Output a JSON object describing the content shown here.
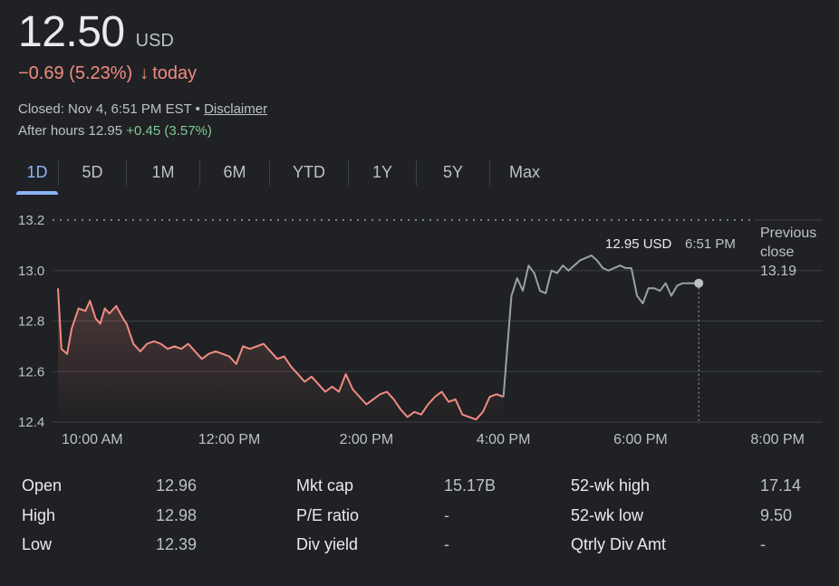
{
  "quote": {
    "price": "12.50",
    "currency": "USD",
    "change": "−0.69 (5.23%)",
    "change_arrow": "↓",
    "change_period": "today",
    "closed_text": "Closed: Nov 4, 6:51 PM EST",
    "separator": "•",
    "disclaimer": "Disclaimer",
    "after_hours_label": "After hours 12.95",
    "after_hours_change": "+0.45 (3.57%)"
  },
  "tabs": [
    "1D",
    "5D",
    "1M",
    "6M",
    "YTD",
    "1Y",
    "5Y",
    "Max"
  ],
  "active_tab": "1D",
  "colors": {
    "down": "#f28b82",
    "up": "#81c995",
    "after_hours_line": "#9aa0a6",
    "accent": "#8ab4f8",
    "grid": "#3c4043"
  },
  "chart_data": {
    "type": "line",
    "ylim": [
      12.4,
      13.2
    ],
    "yticks": [
      "13.2",
      "13.0",
      "12.8",
      "12.6",
      "12.4"
    ],
    "ytick_values": [
      13.2,
      13.0,
      12.8,
      12.6,
      12.4
    ],
    "xlim": [
      "09:30",
      "20:30"
    ],
    "xticks": [
      "10:00 AM",
      "12:00 PM",
      "2:00 PM",
      "4:00 PM",
      "6:00 PM",
      "8:00 PM"
    ],
    "xtick_times": [
      "10:00",
      "12:00",
      "14:00",
      "16:00",
      "18:00",
      "20:00"
    ],
    "previous_close": {
      "label": "Previous close",
      "value": "13.19"
    },
    "tooltip": {
      "price": "12.95 USD",
      "time": "6:51 PM"
    },
    "series": [
      {
        "session": "regular",
        "x": [
          "09:30",
          "09:33",
          "09:38",
          "09:42",
          "09:48",
          "09:54",
          "09:58",
          "10:03",
          "10:07",
          "10:11",
          "10:15",
          "10:21",
          "10:27",
          "10:30",
          "10:36",
          "10:42",
          "10:48",
          "10:54",
          "11:00",
          "11:06",
          "11:12",
          "11:18",
          "11:24",
          "11:30",
          "11:36",
          "11:42",
          "11:48",
          "11:54",
          "12:00",
          "12:06",
          "12:12",
          "12:18",
          "12:24",
          "12:30",
          "12:36",
          "12:42",
          "12:48",
          "12:54",
          "13:00",
          "13:06",
          "13:12",
          "13:18",
          "13:24",
          "13:30",
          "13:36",
          "13:42",
          "13:48",
          "13:54",
          "14:00",
          "14:06",
          "14:12",
          "14:18",
          "14:24",
          "14:30",
          "14:36",
          "14:42",
          "14:48",
          "14:54",
          "15:00",
          "15:06",
          "15:12",
          "15:18",
          "15:24",
          "15:30",
          "15:36",
          "15:42",
          "15:48",
          "15:54",
          "16:00"
        ],
        "y": [
          12.93,
          12.69,
          12.67,
          12.77,
          12.85,
          12.84,
          12.88,
          12.81,
          12.79,
          12.85,
          12.83,
          12.86,
          12.81,
          12.79,
          12.71,
          12.68,
          12.71,
          12.72,
          12.71,
          12.69,
          12.7,
          12.69,
          12.71,
          12.68,
          12.65,
          12.67,
          12.68,
          12.67,
          12.66,
          12.63,
          12.7,
          12.69,
          12.7,
          12.71,
          12.68,
          12.65,
          12.66,
          12.62,
          12.59,
          12.56,
          12.58,
          12.55,
          12.52,
          12.54,
          12.52,
          12.59,
          12.53,
          12.5,
          12.47,
          12.49,
          12.51,
          12.52,
          12.49,
          12.45,
          12.42,
          12.44,
          12.43,
          12.47,
          12.5,
          12.52,
          12.48,
          12.49,
          12.43,
          12.42,
          12.41,
          12.44,
          12.5,
          12.51,
          12.5
        ]
      },
      {
        "session": "after_hours",
        "x": [
          "16:00",
          "16:07",
          "16:12",
          "16:17",
          "16:22",
          "16:27",
          "16:32",
          "16:37",
          "16:42",
          "16:47",
          "16:52",
          "16:57",
          "17:02",
          "17:07",
          "17:12",
          "17:17",
          "17:22",
          "17:27",
          "17:32",
          "17:37",
          "17:42",
          "17:47",
          "17:52",
          "17:57",
          "18:02",
          "18:07",
          "18:12",
          "18:17",
          "18:22",
          "18:27",
          "18:32",
          "18:37",
          "18:42",
          "18:47",
          "18:51"
        ],
        "y": [
          12.5,
          12.9,
          12.97,
          12.92,
          13.02,
          12.99,
          12.92,
          12.91,
          13.0,
          12.99,
          13.02,
          13.0,
          13.02,
          13.04,
          13.05,
          13.06,
          13.04,
          13.01,
          13.0,
          13.01,
          13.02,
          13.01,
          13.01,
          12.9,
          12.87,
          12.93,
          12.93,
          12.92,
          12.95,
          12.9,
          12.94,
          12.95,
          12.95,
          12.95,
          12.95
        ]
      }
    ]
  },
  "stats": [
    [
      {
        "label": "Open",
        "value": "12.96"
      },
      {
        "label": "Mkt cap",
        "value": "15.17B"
      },
      {
        "label": "52-wk high",
        "value": "17.14"
      }
    ],
    [
      {
        "label": "High",
        "value": "12.98"
      },
      {
        "label": "P/E ratio",
        "value": "-"
      },
      {
        "label": "52-wk low",
        "value": "9.50"
      }
    ],
    [
      {
        "label": "Low",
        "value": "12.39"
      },
      {
        "label": "Div yield",
        "value": "-"
      },
      {
        "label": "Qtrly Div Amt",
        "value": "-"
      }
    ]
  ]
}
